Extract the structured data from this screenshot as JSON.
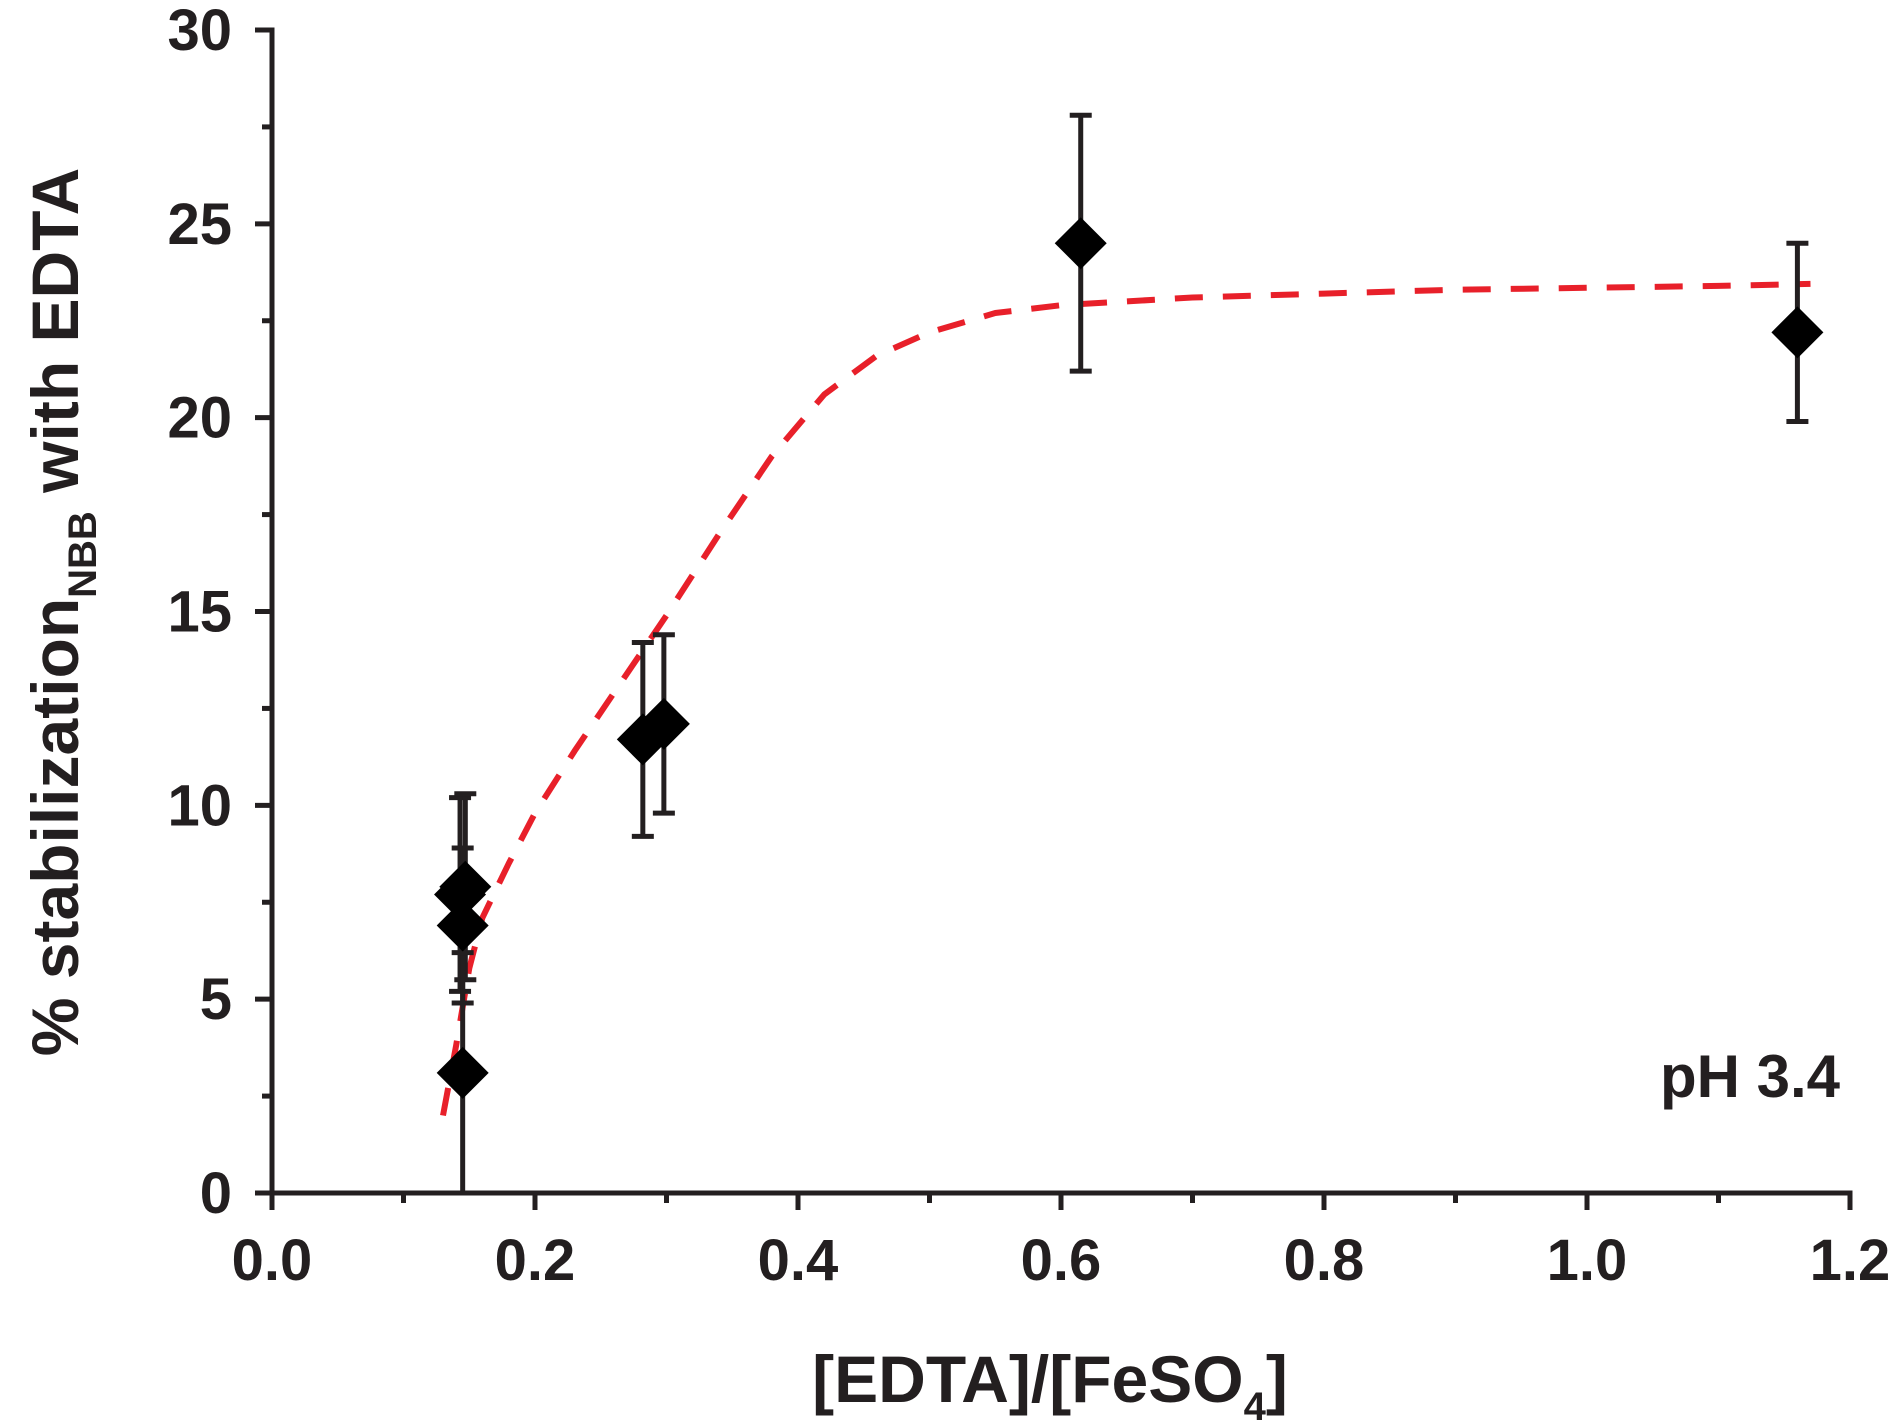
{
  "chart_data": {
    "type": "scatter",
    "xlabel_main": "[EDTA]/[FeSO",
    "xlabel_sub": "4",
    "xlabel_end": "]",
    "ylabel_main": "% stabilization",
    "ylabel_sub": "NBB",
    "ylabel_end": " with EDTA",
    "annotation": "pH 3.4",
    "xlim": [
      0.0,
      1.2
    ],
    "ylim": [
      0,
      30
    ],
    "x_ticks": [
      "0.0",
      "0.2",
      "0.4",
      "0.6",
      "0.8",
      "1.0",
      "1.2"
    ],
    "y_ticks": [
      "0",
      "5",
      "10",
      "15",
      "20",
      "25",
      "30"
    ],
    "grid": false,
    "points": [
      {
        "x": 0.143,
        "y": 7.7,
        "err": 2.5
      },
      {
        "x": 0.147,
        "y": 7.9,
        "err": 2.4
      },
      {
        "x": 0.145,
        "y": 6.9,
        "err": 2.0
      },
      {
        "x": 0.145,
        "y": 3.1,
        "err": 3.1
      },
      {
        "x": 0.282,
        "y": 11.7,
        "err": 2.5
      },
      {
        "x": 0.298,
        "y": 12.1,
        "err": 2.3
      },
      {
        "x": 0.615,
        "y": 24.5,
        "err": 3.3
      },
      {
        "x": 1.16,
        "y": 22.2,
        "err": 2.3
      }
    ],
    "fit": {
      "style": "dashed",
      "x": [
        0.13,
        0.14,
        0.15,
        0.16,
        0.18,
        0.2,
        0.23,
        0.26,
        0.3,
        0.34,
        0.38,
        0.42,
        0.46,
        0.5,
        0.55,
        0.6,
        0.65,
        0.7,
        0.8,
        0.9,
        1.0,
        1.1,
        1.17
      ],
      "y": [
        2.0,
        3.8,
        5.8,
        7.1,
        8.5,
        9.8,
        11.4,
        12.9,
        14.9,
        17.0,
        19.0,
        20.6,
        21.6,
        22.2,
        22.7,
        22.9,
        23.0,
        23.1,
        23.2,
        23.3,
        23.35,
        23.4,
        23.45
      ]
    },
    "colors": {
      "axis": "#231f20",
      "points": "#000000",
      "fit": "#e8202a"
    }
  }
}
